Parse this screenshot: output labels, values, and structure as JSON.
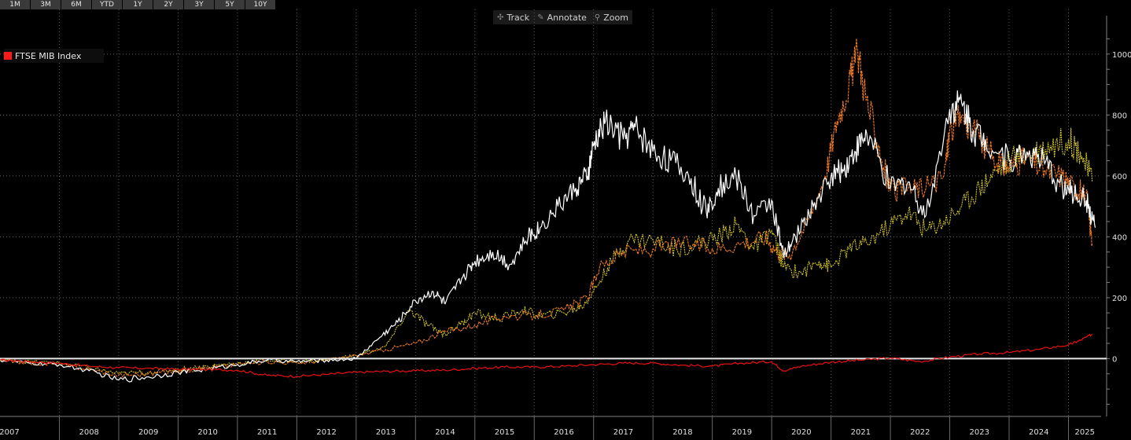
{
  "range_buttons": [
    "1M",
    "3M",
    "6M",
    "YTD",
    "1Y",
    "2Y",
    "3Y",
    "5Y",
    "10Y"
  ],
  "tools": {
    "track": {
      "label": "Track",
      "icon": "crosshair-icon"
    },
    "annotate": {
      "label": "Annotate",
      "icon": "pencil-icon"
    },
    "zoom": {
      "label": "Zoom",
      "icon": "magnifier-icon"
    }
  },
  "legend": {
    "label": "FTSE MIB Index",
    "color": "#ff1a1a"
  },
  "chart_data": {
    "type": "line",
    "title": "",
    "xlabel": "",
    "ylabel": "",
    "x_ticks": [
      "2007",
      "2008",
      "2009",
      "2010",
      "2011",
      "2012",
      "2013",
      "2014",
      "2015",
      "2016",
      "2017",
      "2018",
      "2019",
      "2020",
      "2021",
      "2022",
      "2023",
      "2024",
      "2025"
    ],
    "y_ticks": [
      0,
      200,
      400,
      600,
      800,
      1000
    ],
    "xlim": [
      2007.0,
      2025.55
    ],
    "ylim": [
      -190,
      1095
    ],
    "grid": true,
    "y_axis_side": "right",
    "series": [
      {
        "name": "FTSE MIB Index",
        "color": "#e0110f",
        "x": [
          2007.0,
          2007.5,
          2008.0,
          2008.5,
          2009.0,
          2009.5,
          2010.0,
          2010.5,
          2011.0,
          2011.5,
          2012.0,
          2012.5,
          2013.0,
          2013.5,
          2014.0,
          2014.5,
          2015.0,
          2015.5,
          2016.0,
          2016.5,
          2017.0,
          2017.5,
          2018.0,
          2018.5,
          2019.0,
          2019.5,
          2020.0,
          2020.2,
          2020.5,
          2021.0,
          2021.5,
          2022.0,
          2022.5,
          2023.0,
          2023.5,
          2024.0,
          2024.5,
          2025.0,
          2025.2,
          2025.4
        ],
        "y": [
          -5,
          -10,
          -15,
          -25,
          -30,
          -32,
          -35,
          -36,
          -38,
          -55,
          -58,
          -52,
          -45,
          -42,
          -40,
          -38,
          -32,
          -28,
          -28,
          -25,
          -20,
          -15,
          -15,
          -22,
          -25,
          -15,
          -10,
          -40,
          -25,
          -12,
          -5,
          2,
          -10,
          5,
          15,
          20,
          30,
          45,
          60,
          80
        ]
      },
      {
        "color": "#ffffff",
        "x": [
          2007.0,
          2007.5,
          2008.0,
          2008.5,
          2009.0,
          2009.5,
          2010.0,
          2010.5,
          2011.0,
          2011.5,
          2012.0,
          2012.5,
          2013.0,
          2013.4,
          2013.7,
          2014.0,
          2014.3,
          2014.5,
          2014.8,
          2015.0,
          2015.3,
          2015.6,
          2015.9,
          2016.1,
          2016.4,
          2016.7,
          2016.9,
          2017.0,
          2017.2,
          2017.5,
          2017.7,
          2018.0,
          2018.3,
          2018.6,
          2018.9,
          2019.1,
          2019.4,
          2019.7,
          2020.0,
          2020.2,
          2020.4,
          2020.7,
          2021.0,
          2021.2,
          2021.4,
          2021.6,
          2022.0,
          2022.3,
          2022.6,
          2023.0,
          2023.2,
          2023.4,
          2023.6,
          2024.0,
          2024.3,
          2024.6,
          2024.9,
          2025.1,
          2025.3,
          2025.45
        ],
        "y": [
          -5,
          -15,
          -20,
          -40,
          -70,
          -60,
          -45,
          -35,
          -20,
          -5,
          -10,
          -5,
          0,
          70,
          120,
          190,
          220,
          180,
          270,
          320,
          350,
          310,
          400,
          430,
          500,
          560,
          600,
          700,
          780,
          720,
          760,
          680,
          650,
          600,
          480,
          560,
          600,
          470,
          520,
          330,
          400,
          500,
          600,
          620,
          680,
          740,
          560,
          580,
          470,
          820,
          840,
          750,
          720,
          650,
          680,
          640,
          560,
          540,
          520,
          430
        ]
      },
      {
        "color": "#f07b20",
        "x": [
          2007.0,
          2007.5,
          2008.0,
          2008.5,
          2009.0,
          2009.5,
          2010.0,
          2010.5,
          2011.0,
          2011.5,
          2012.0,
          2012.5,
          2013.0,
          2013.5,
          2014.0,
          2014.5,
          2015.0,
          2015.5,
          2016.0,
          2016.5,
          2016.9,
          2017.1,
          2017.5,
          2018.0,
          2018.5,
          2019.0,
          2019.5,
          2019.9,
          2020.1,
          2020.3,
          2020.6,
          2020.9,
          2021.1,
          2021.3,
          2021.45,
          2021.6,
          2021.8,
          2022.0,
          2022.3,
          2022.6,
          2022.9,
          2023.0,
          2023.2,
          2023.5,
          2023.8,
          2024.0,
          2024.3,
          2024.6,
          2024.9,
          2025.1,
          2025.3,
          2025.4
        ],
        "y": [
          -5,
          -15,
          -20,
          -35,
          -55,
          -50,
          -40,
          -30,
          -20,
          -10,
          -15,
          -5,
          10,
          30,
          50,
          90,
          110,
          140,
          140,
          160,
          200,
          300,
          350,
          360,
          380,
          360,
          380,
          400,
          350,
          340,
          450,
          600,
          780,
          900,
          1010,
          850,
          700,
          550,
          560,
          560,
          600,
          750,
          800,
          720,
          640,
          630,
          660,
          620,
          600,
          560,
          540,
          380
        ]
      },
      {
        "color": "#d4c622",
        "x": [
          2007.0,
          2007.5,
          2008.0,
          2008.5,
          2009.0,
          2009.5,
          2010.0,
          2010.5,
          2011.0,
          2011.5,
          2012.0,
          2012.5,
          2013.0,
          2013.5,
          2013.9,
          2014.2,
          2014.5,
          2014.8,
          2015.0,
          2015.4,
          2015.8,
          2016.1,
          2016.5,
          2016.8,
          2017.0,
          2017.3,
          2017.6,
          2018.0,
          2018.4,
          2018.8,
          2019.1,
          2019.4,
          2019.7,
          2020.0,
          2020.2,
          2020.5,
          2020.8,
          2021.0,
          2021.3,
          2021.6,
          2022.0,
          2022.3,
          2022.6,
          2022.9,
          2023.2,
          2023.5,
          2023.8,
          2024.1,
          2024.4,
          2024.7,
          2025.0,
          2025.2,
          2025.4
        ],
        "y": [
          -5,
          -10,
          -15,
          -30,
          -50,
          -45,
          -35,
          -25,
          -15,
          -5,
          -10,
          -5,
          10,
          40,
          160,
          110,
          80,
          120,
          150,
          130,
          160,
          140,
          150,
          170,
          220,
          320,
          390,
          390,
          360,
          380,
          400,
          440,
          360,
          420,
          300,
          280,
          320,
          300,
          360,
          380,
          440,
          480,
          420,
          450,
          500,
          560,
          620,
          660,
          680,
          700,
          720,
          680,
          580
        ]
      }
    ]
  }
}
